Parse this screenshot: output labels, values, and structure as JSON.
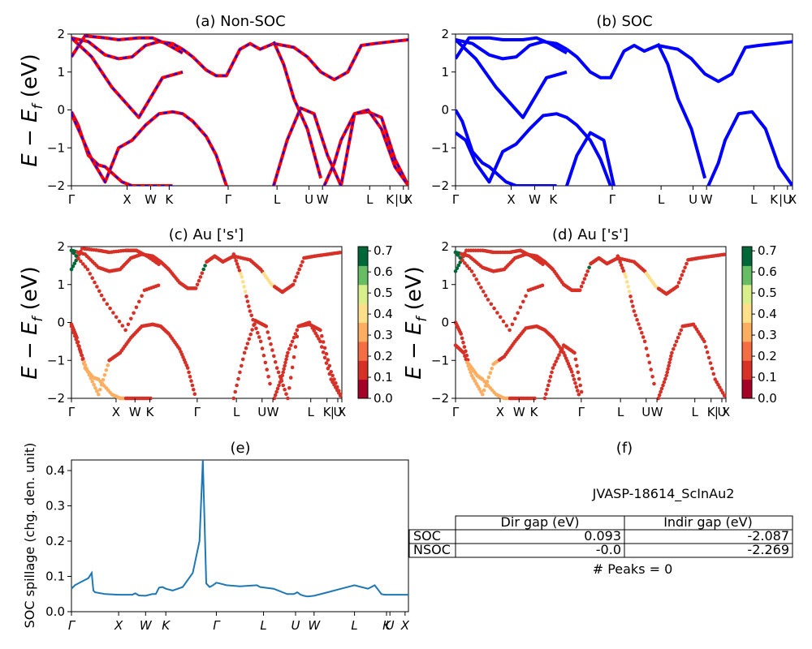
{
  "figure": {
    "ylabel_main": "E − E",
    "ylabel_sub": "f",
    "ylabel_unit": " (eV)",
    "kpath": [
      "Γ",
      "X",
      "W",
      "K",
      "Γ",
      "L",
      "U",
      "W",
      "L",
      "K",
      "|",
      "U",
      "X"
    ]
  },
  "colorbar": {
    "ticks": [
      "0.0",
      "0.1",
      "0.2",
      "0.3",
      "0.4",
      "0.5",
      "0.6",
      "0.7"
    ],
    "colors": [
      "#a50026",
      "#d73027",
      "#f46d43",
      "#fdae61",
      "#fee08b",
      "#d9ef8b",
      "#66bd63",
      "#006837"
    ]
  },
  "chart_data": [
    {
      "id": "a",
      "type": "line",
      "title": "(a) Non-SOC",
      "ylim": [
        -2,
        2
      ],
      "yticks": [
        "−2",
        "−1",
        "0",
        "1",
        "2"
      ],
      "series_style": "red solid with blue dashes",
      "series": [
        {
          "x": [
            0.0,
            0.02,
            0.05,
            0.08,
            0.1,
            0.15,
            0.18,
            0.21,
            0.25,
            0.3
          ],
          "y": [
            -0.05,
            -0.4,
            -1.2,
            -1.45,
            -1.5,
            -1.9,
            -2.0,
            -2.0,
            -2.0,
            -2.0
          ]
        },
        {
          "x": [
            0.0,
            0.03,
            0.06,
            0.1,
            0.14,
            0.18,
            0.22,
            0.26,
            0.3,
            0.33,
            0.36,
            0.4,
            0.43,
            0.46
          ],
          "y": [
            -0.1,
            -0.7,
            -1.3,
            -1.9,
            -1.0,
            -0.8,
            -0.4,
            -0.1,
            -0.05,
            -0.1,
            -0.3,
            -0.7,
            -1.2,
            -2.0
          ]
        },
        {
          "x": [
            0.0,
            0.05,
            0.1,
            0.14,
            0.18,
            0.22,
            0.26,
            0.3,
            0.33
          ],
          "y": [
            1.9,
            1.8,
            1.45,
            1.35,
            1.4,
            1.7,
            1.8,
            1.75,
            1.6
          ]
        },
        {
          "x": [
            0.0,
            0.04,
            0.1,
            0.14,
            0.2,
            0.24,
            0.28,
            0.33
          ],
          "y": [
            1.4,
            1.95,
            1.9,
            1.85,
            1.9,
            1.9,
            1.75,
            1.5
          ]
        },
        {
          "x": [
            0.0,
            0.06,
            0.12,
            0.2,
            0.27,
            0.33
          ],
          "y": [
            1.9,
            1.4,
            0.6,
            -0.2,
            0.85,
            1.0
          ]
        },
        {
          "x": [
            0.33,
            0.36,
            0.4,
            0.43,
            0.46,
            0.5,
            0.53,
            0.56,
            0.6,
            0.66,
            0.7,
            0.74,
            0.78,
            0.82,
            0.86,
            0.9,
            0.95,
            1.0
          ],
          "y": [
            1.6,
            1.4,
            1.05,
            0.9,
            0.9,
            1.6,
            1.75,
            1.6,
            1.75,
            1.65,
            1.4,
            1.0,
            0.8,
            1.0,
            1.7,
            1.75,
            1.8,
            1.85
          ]
        },
        {
          "x": [
            0.6,
            0.64,
            0.68,
            0.72,
            0.76,
            0.8,
            0.84,
            0.88,
            0.92,
            0.96,
            1.0
          ],
          "y": [
            -2.0,
            -0.8,
            0.05,
            -0.1,
            -1.2,
            -2.0,
            -0.1,
            -0.05,
            -0.2,
            -1.3,
            -2.0
          ]
        },
        {
          "x": [
            0.75,
            0.78,
            0.8,
            0.84,
            0.88,
            0.92,
            0.96,
            1.0
          ],
          "y": [
            -2.0,
            -1.4,
            -0.8,
            -0.1,
            0.0,
            -0.5,
            -1.5,
            -2.0
          ]
        },
        {
          "x": [
            0.6,
            0.63,
            0.66,
            0.7,
            0.74
          ],
          "y": [
            1.8,
            1.2,
            0.3,
            -0.5,
            -1.8
          ]
        }
      ]
    },
    {
      "id": "b",
      "type": "line",
      "title": "(b) SOC",
      "ylim": [
        -2,
        2
      ],
      "yticks": [
        "−2",
        "−1",
        "0",
        "1",
        "2"
      ],
      "series_style": "blue solid",
      "series": [
        {
          "x": [
            0.0,
            0.02,
            0.05,
            0.08,
            0.1,
            0.15,
            0.18,
            0.21,
            0.25,
            0.3
          ],
          "y": [
            -0.0,
            -0.3,
            -1.1,
            -1.4,
            -1.5,
            -1.9,
            -2.0,
            -2.0,
            -2.0,
            -2.0
          ]
        },
        {
          "x": [
            0.0,
            0.03,
            0.06,
            0.1,
            0.14,
            0.18,
            0.22,
            0.26,
            0.3,
            0.33,
            0.36,
            0.4,
            0.43,
            0.46
          ],
          "y": [
            -0.6,
            -0.8,
            -1.4,
            -1.9,
            -1.1,
            -0.9,
            -0.5,
            -0.15,
            -0.1,
            -0.2,
            -0.4,
            -0.8,
            -1.3,
            -2.0
          ]
        },
        {
          "x": [
            0.0,
            0.05,
            0.1,
            0.14,
            0.18,
            0.22,
            0.26,
            0.3,
            0.33
          ],
          "y": [
            1.85,
            1.75,
            1.45,
            1.35,
            1.4,
            1.7,
            1.8,
            1.75,
            1.6
          ]
        },
        {
          "x": [
            0.0,
            0.04,
            0.1,
            0.14,
            0.2,
            0.24,
            0.28,
            0.33
          ],
          "y": [
            1.35,
            1.9,
            1.9,
            1.85,
            1.85,
            1.9,
            1.75,
            1.5
          ]
        },
        {
          "x": [
            0.0,
            0.06,
            0.12,
            0.2,
            0.27,
            0.33
          ],
          "y": [
            1.85,
            1.35,
            0.6,
            -0.2,
            0.85,
            1.0
          ]
        },
        {
          "x": [
            0.33,
            0.36,
            0.4,
            0.43,
            0.46,
            0.5,
            0.53,
            0.56,
            0.6,
            0.66,
            0.7,
            0.74,
            0.78,
            0.82,
            0.86,
            0.9,
            0.95,
            1.0
          ],
          "y": [
            1.6,
            1.4,
            1.0,
            0.85,
            0.85,
            1.55,
            1.7,
            1.55,
            1.7,
            1.6,
            1.35,
            0.95,
            0.75,
            0.95,
            1.65,
            1.7,
            1.75,
            1.8
          ]
        },
        {
          "x": [
            0.33,
            0.36,
            0.4,
            0.44,
            0.47
          ],
          "y": [
            -2.0,
            -1.2,
            -0.6,
            -0.8,
            -2.0
          ]
        },
        {
          "x": [
            0.75,
            0.78,
            0.8,
            0.84,
            0.88,
            0.92,
            0.96,
            1.0
          ],
          "y": [
            -2.0,
            -1.4,
            -0.8,
            -0.1,
            -0.05,
            -0.5,
            -1.5,
            -2.0
          ]
        },
        {
          "x": [
            0.6,
            0.63,
            0.66,
            0.7,
            0.74
          ],
          "y": [
            1.75,
            1.2,
            0.3,
            -0.5,
            -1.8
          ]
        }
      ]
    },
    {
      "id": "c",
      "type": "scatter",
      "title": "(c)  Au ['s']",
      "ylim": [
        -2,
        2
      ],
      "yticks": [
        "−2",
        "−1",
        "0",
        "1",
        "2"
      ],
      "colorbar_range": [
        0,
        0.7
      ],
      "note": "same band paths as (a), points colored by Au s-weight"
    },
    {
      "id": "d",
      "type": "scatter",
      "title": "(d) Au ['s']",
      "ylim": [
        -2,
        2
      ],
      "yticks": [
        "−2",
        "−1",
        "0",
        "1",
        "2"
      ],
      "colorbar_range": [
        0,
        0.7
      ],
      "note": "same band paths as (b), points colored by Au s-weight"
    },
    {
      "id": "e",
      "type": "line",
      "title": "(e)",
      "ylabel": "SOC spillage (chg. den. unit)",
      "ylim": [
        0,
        0.43
      ],
      "yticks": [
        "0.0",
        "0.1",
        "0.2",
        "0.3",
        "0.4"
      ],
      "xticks": [
        "Γ",
        "X",
        "W",
        "K",
        "Γ",
        "L",
        "U",
        "W",
        "L",
        "K",
        "U",
        "X"
      ],
      "color": "#1f77b4",
      "x": [
        0.0,
        0.01,
        0.03,
        0.05,
        0.06,
        0.065,
        0.07,
        0.1,
        0.14,
        0.18,
        0.19,
        0.2,
        0.22,
        0.24,
        0.25,
        0.26,
        0.27,
        0.28,
        0.3,
        0.33,
        0.36,
        0.38,
        0.39,
        0.4,
        0.41,
        0.42,
        0.43,
        0.44,
        0.46,
        0.5,
        0.55,
        0.56,
        0.6,
        0.64,
        0.66,
        0.67,
        0.68,
        0.69,
        0.7,
        0.72,
        0.76,
        0.8,
        0.84,
        0.86,
        0.88,
        0.9,
        0.92,
        0.93,
        0.95,
        0.98,
        1.0
      ],
      "y": [
        0.065,
        0.075,
        0.085,
        0.095,
        0.11,
        0.06,
        0.055,
        0.05,
        0.048,
        0.048,
        0.052,
        0.046,
        0.045,
        0.05,
        0.05,
        0.068,
        0.07,
        0.065,
        0.06,
        0.07,
        0.11,
        0.2,
        0.43,
        0.08,
        0.07,
        0.075,
        0.082,
        0.08,
        0.075,
        0.072,
        0.075,
        0.07,
        0.065,
        0.05,
        0.05,
        0.055,
        0.048,
        0.045,
        0.043,
        0.045,
        0.055,
        0.065,
        0.075,
        0.07,
        0.065,
        0.075,
        0.05,
        0.048,
        0.048,
        0.048,
        0.048
      ]
    }
  ],
  "panel_f": {
    "title": "(f)",
    "jid": "JVASP-18614_ScInAu2",
    "headers": [
      "Dir gap (eV)",
      "Indir gap (eV)"
    ],
    "rows": [
      {
        "label": "SOC",
        "dir": "0.093",
        "indir": "-2.087"
      },
      {
        "label": "NSOC",
        "dir": "-0.0",
        "indir": "-2.269"
      }
    ],
    "peaks": "# Peaks = 0"
  }
}
